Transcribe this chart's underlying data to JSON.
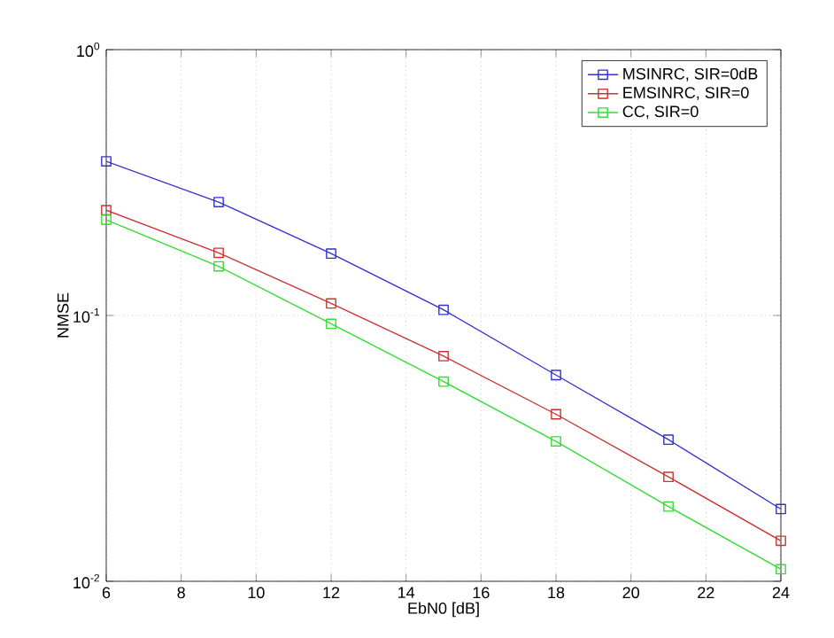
{
  "chart_data": {
    "type": "line",
    "xlabel": "EbN0 [dB]",
    "ylabel": "NMSE",
    "log": "y",
    "grid": true,
    "legend": "top right",
    "marker": "square",
    "line_style": "solid",
    "x": [
      6,
      9,
      12,
      15,
      18,
      21,
      24
    ],
    "xlim": [
      6,
      24
    ],
    "xticks": [
      6,
      8,
      10,
      12,
      14,
      16,
      18,
      20,
      22,
      24
    ],
    "ylim": [
      0.01,
      1
    ],
    "yticks": [
      {
        "value": 1,
        "label": "10$^{0}$"
      },
      {
        "value": 0.1,
        "label": "10$^{-1}$"
      },
      {
        "value": 0.01,
        "label": "10$^{-2}$"
      }
    ],
    "series": [
      {
        "name": "MSINRC, SIR=0dB",
        "color": "#3333cc",
        "values": [
          0.38,
          0.267,
          0.171,
          0.105,
          0.0597,
          0.0341,
          0.0187
        ]
      },
      {
        "name": "EMSINRC, SIR=0",
        "color": "#cc3333",
        "values": [
          0.249,
          0.172,
          0.111,
          0.0703,
          0.0425,
          0.0247,
          0.0142
        ]
      },
      {
        "name": "CC, SIR=0",
        "color": "#33dd33",
        "values": [
          0.229,
          0.153,
          0.093,
          0.0564,
          0.0336,
          0.0191,
          0.0111
        ]
      }
    ]
  }
}
